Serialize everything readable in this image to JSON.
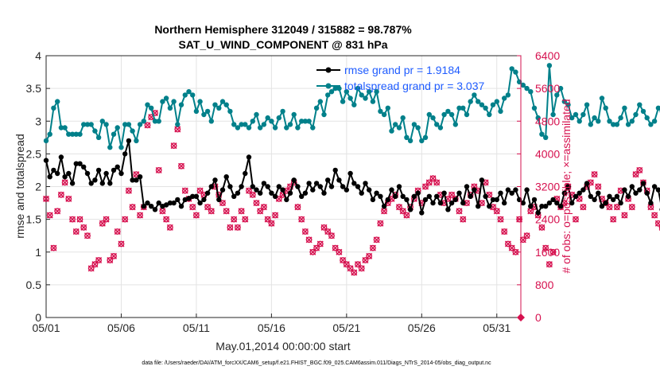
{
  "chart_data": {
    "type": "line",
    "title": "Northern Hemisphere 312049 / 315882 = 98.787%",
    "subtitle": "SAT_U_WIND_COMPONENT @ 831 hPa",
    "xlabel": "May.01,2014 00:00:00 start",
    "ylabel": "rmse and totalspread",
    "y2label": "# of obs: o=possible; ×=assimilated",
    "footnote": "data file: /Users/raeder/DAI/ATM_forcXX/CAM6_setup/f.e21.FHIST_BGC.f09_025.CAM6assim.011/Diags_NTrS_2014-05/obs_diag_output.nc",
    "x_range": [
      0,
      31.6
    ],
    "x_ticks": [
      0,
      5,
      10,
      15,
      20,
      25,
      30
    ],
    "x_tick_labels": [
      "05/01",
      "05/06",
      "05/11",
      "05/16",
      "05/21",
      "05/26",
      "05/31"
    ],
    "ylim": [
      0,
      4
    ],
    "y_ticks": [
      0,
      0.5,
      1,
      1.5,
      2,
      2.5,
      3,
      3.5,
      4
    ],
    "y_tick_labels": [
      "0",
      "0.5",
      "1",
      "1.5",
      "2",
      "2.5",
      "3",
      "3.5",
      "4"
    ],
    "y2lim": [
      0,
      6400
    ],
    "y2_ticks": [
      0,
      800,
      1600,
      2400,
      3200,
      4000,
      4800,
      5600,
      6400
    ],
    "y2_tick_labels": [
      "0",
      "800",
      "1600",
      "2400",
      "3200",
      "4000",
      "4800",
      "5600",
      "6400"
    ],
    "grid": true,
    "legend": [
      "rmse grand pr = 1.9184",
      "totalspread grand pr = 3.037"
    ],
    "legend_position": "top-right",
    "colors": {
      "rmse": "#000000",
      "spread": "#00808a",
      "obs": "#d6114f",
      "grid": "#e3e3e3",
      "axis": "#262626"
    },
    "series": [
      {
        "name": "rmse",
        "axis": "left",
        "x_step": 0.25,
        "values": [
          2.4,
          2.15,
          2.25,
          2.2,
          2.45,
          2.15,
          2.2,
          2.05,
          2.35,
          2.35,
          2.3,
          2.2,
          2.05,
          2.1,
          2.25,
          2.05,
          2.2,
          2.05,
          2.25,
          2.3,
          2.2,
          2.5,
          2.7,
          2.1,
          2.1,
          2.15,
          1.7,
          1.75,
          1.7,
          1.65,
          1.75,
          1.7,
          1.72,
          1.75,
          1.75,
          1.8,
          1.7,
          1.8,
          1.82,
          1.85,
          1.85,
          1.75,
          1.8,
          1.9,
          2.0,
          2.1,
          1.8,
          1.95,
          2.15,
          2.0,
          1.85,
          1.9,
          2.0,
          2.2,
          2.45,
          2.0,
          1.95,
          1.9,
          2.05,
          2.0,
          1.9,
          1.85,
          2.0,
          1.95,
          1.8,
          1.9,
          2.1,
          2.0,
          1.85,
          1.9,
          2.05,
          1.95,
          2.05,
          2.0,
          1.9,
          2.1,
          2.0,
          2.25,
          2.1,
          2.0,
          1.95,
          2.2,
          2.05,
          2.0,
          1.9,
          2.05,
          1.95,
          1.8,
          1.9,
          1.85,
          1.7,
          1.8,
          1.95,
          1.85,
          2.0,
          1.85,
          1.8,
          1.65,
          1.85,
          1.9,
          1.6,
          1.8,
          1.85,
          1.75,
          1.85,
          1.75,
          1.9,
          1.65,
          1.75,
          1.8,
          1.9,
          1.75,
          2.0,
          1.85,
          1.95,
          1.7,
          2.1,
          1.85,
          1.7,
          1.8,
          1.8,
          1.9,
          1.75,
          1.95,
          1.9,
          1.95,
          1.8,
          1.75,
          1.95,
          1.7,
          1.8,
          1.6,
          1.7,
          1.7,
          1.75,
          1.8,
          1.75,
          1.7,
          1.9,
          2.0,
          1.75,
          1.85,
          1.9,
          1.95,
          2.05,
          1.85,
          1.8,
          1.9,
          1.7,
          1.75,
          1.85,
          1.8,
          1.85,
          1.75,
          1.95,
          1.85,
          2.0,
          1.9,
          1.95,
          2.05,
          1.9,
          1.75,
          2.0,
          1.95,
          1.65,
          1.7,
          1.95,
          2.0,
          1.9,
          2.0,
          2.0,
          1.75,
          2.0,
          1.95,
          1.9,
          2.0,
          1.95,
          1.85,
          1.8,
          1.8,
          1.85,
          1.95,
          1.6,
          1.65,
          1.65
        ]
      },
      {
        "name": "totalspread",
        "axis": "left",
        "x_step": 0.25,
        "values": [
          2.7,
          2.8,
          3.2,
          3.3,
          2.9,
          2.9,
          2.8,
          2.8,
          2.8,
          2.8,
          2.95,
          2.95,
          2.95,
          2.85,
          2.75,
          3.0,
          2.95,
          2.6,
          2.8,
          2.9,
          2.6,
          2.95,
          2.95,
          2.85,
          2.7,
          2.95,
          3.0,
          3.25,
          3.2,
          3.0,
          3.0,
          3.3,
          3.35,
          3.2,
          3.3,
          2.95,
          3.25,
          3.4,
          3.45,
          3.4,
          3.15,
          3.3,
          3.1,
          3.15,
          3.0,
          3.25,
          3.2,
          3.3,
          3.25,
          3.15,
          2.95,
          2.9,
          2.95,
          2.95,
          2.9,
          3.0,
          3.1,
          2.9,
          2.95,
          3.05,
          3.0,
          2.9,
          3.05,
          3.15,
          2.9,
          2.95,
          3.1,
          2.9,
          3.0,
          3.0,
          3.0,
          2.9,
          3.2,
          3.3,
          3.1,
          3.4,
          3.45,
          3.5,
          3.5,
          3.3,
          3.45,
          3.35,
          3.25,
          3.5,
          3.4,
          3.35,
          3.45,
          3.3,
          3.45,
          3.15,
          3.1,
          3.2,
          2.85,
          2.95,
          2.9,
          3.05,
          2.75,
          2.7,
          2.95,
          2.9,
          2.7,
          2.75,
          3.1,
          3.05,
          2.95,
          2.9,
          3.1,
          3.15,
          3.1,
          2.95,
          3.2,
          3.2,
          3.1,
          3.3,
          3.4,
          3.3,
          3.25,
          3.2,
          3.1,
          3.25,
          3.3,
          3.15,
          3.35,
          3.4,
          3.8,
          3.75,
          3.6,
          3.55,
          3.5,
          3.45,
          3.2,
          3.05,
          2.8,
          2.75,
          3.85,
          3.1,
          3.4,
          3.5,
          3.3,
          3.25,
          3.05,
          3.1,
          3.0,
          3.1,
          3.25,
          2.95,
          3.05,
          3.0,
          3.35,
          3.2,
          3.0,
          2.95,
          2.95,
          3.05,
          3.2,
          2.95,
          3.0,
          3.1,
          3.25,
          3.15,
          3.05,
          2.95,
          3.0,
          3.2,
          3.15,
          3.0,
          3.05,
          2.95,
          2.95,
          3.05,
          2.9,
          3.0,
          3.15,
          3.2,
          2.9,
          2.7,
          2.45,
          2.55,
          2.9,
          3.1,
          3.15,
          3.05,
          3.0,
          3.1,
          3.05,
          2.95,
          3.05,
          3.0,
          2.95,
          3.0,
          3.1,
          3.0,
          3.15,
          3.15
        ]
      },
      {
        "name": "obs_count",
        "axis": "right",
        "x_step": 0.25,
        "values": [
          2900,
          2500,
          1700,
          2600,
          3000,
          3300,
          2900,
          2400,
          2100,
          2400,
          2200,
          2000,
          1200,
          1300,
          1400,
          2300,
          2400,
          1400,
          1500,
          2100,
          1800,
          2400,
          3100,
          2700,
          3500,
          2500,
          2700,
          4700,
          4900,
          5000,
          3600,
          2600,
          2400,
          2200,
          4200,
          4600,
          3700,
          3100,
          2900,
          2700,
          2500,
          3100,
          3000,
          2700,
          2600,
          3200,
          3000,
          2800,
          2600,
          2200,
          2400,
          2200,
          2600,
          2400,
          3100,
          3000,
          2800,
          2600,
          2700,
          2400,
          2300,
          2500,
          2900,
          3000,
          3100,
          3200,
          3300,
          2700,
          2400,
          2100,
          1900,
          1600,
          1700,
          1800,
          2200,
          2100,
          2000,
          1700,
          1600,
          1400,
          1300,
          1200,
          1100,
          1300,
          1200,
          1400,
          1500,
          1700,
          1900,
          2300,
          2600,
          2800,
          2900,
          3000,
          2700,
          2600,
          2500,
          2700,
          2900,
          3100,
          2800,
          3200,
          3300,
          3400,
          3300,
          3000,
          2800,
          2900,
          3000,
          2900,
          2600,
          2400,
          2800,
          3000,
          3200,
          3100,
          2800,
          3300,
          3000,
          2700,
          2600,
          2400,
          2100,
          1800,
          1700,
          1600,
          2400,
          1900,
          2000,
          2600,
          2700,
          2500,
          2200,
          1700,
          1300,
          1600,
          2900,
          2700,
          2800,
          3200,
          3000,
          2400,
          2900,
          2700,
          3200,
          3300,
          3500,
          3200,
          2900,
          2800,
          2700,
          2400,
          2700,
          3100,
          2500,
          2900,
          2700,
          3500,
          3600,
          3300,
          3100,
          2700,
          2500,
          2300,
          2200,
          2400,
          3000,
          3100,
          3200,
          3300,
          3400,
          3600,
          3000,
          2600,
          2300,
          2200,
          2400,
          2700,
          3000,
          2800,
          3200,
          3500,
          3300,
          3000,
          2800,
          2700,
          2600,
          2400
        ]
      }
    ]
  }
}
